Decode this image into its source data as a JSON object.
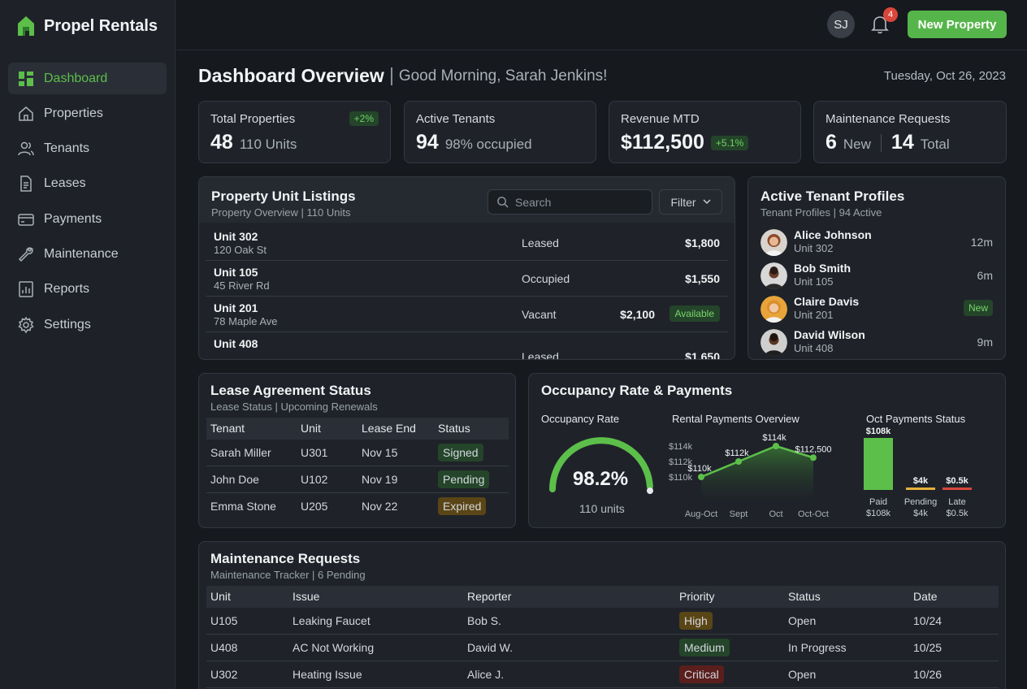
{
  "app": {
    "name": "Propel Rentals"
  },
  "sidebar": {
    "items": [
      {
        "label": "Dashboard",
        "icon": "dashboard-icon"
      },
      {
        "label": "Properties",
        "icon": "home-icon"
      },
      {
        "label": "Tenants",
        "icon": "users-icon"
      },
      {
        "label": "Leases",
        "icon": "document-icon"
      },
      {
        "label": "Payments",
        "icon": "card-icon"
      },
      {
        "label": "Maintenance",
        "icon": "wrench-icon"
      },
      {
        "label": "Reports",
        "icon": "chart-icon"
      },
      {
        "label": "Settings",
        "icon": "gear-icon"
      }
    ]
  },
  "topbar": {
    "avatar_initials": "SJ",
    "notification_count": "4",
    "new_property_label": "New Property"
  },
  "header": {
    "title": "Dashboard Overview",
    "greeting": "Good Morning, Sarah Jenkins!",
    "date": "Tuesday, Oct 26, 2023"
  },
  "stats": [
    {
      "label": "Total Properties",
      "value": "48",
      "sub": "110 Units",
      "badge": "+2%"
    },
    {
      "label": "Active Tenants",
      "value": "94",
      "sub": "98% occupied"
    },
    {
      "label": "Revenue MTD",
      "value": "$112,500",
      "badge": "+5.1%"
    },
    {
      "label": "Maintenance Requests",
      "value": "6",
      "sub": "New",
      "value2": "14",
      "sub2": "Total"
    }
  ],
  "listings": {
    "title": "Property Unit Listings",
    "subtitle": "Property Overview | 110 Units",
    "search_placeholder": "Search",
    "filter_label": "Filter",
    "rows": [
      {
        "unit": "Unit 302",
        "address": "120 Oak St",
        "status": "Leased",
        "price": "$1,800"
      },
      {
        "unit": "Unit 105",
        "address": "45 River Rd",
        "status": "Occupied",
        "price": "$1,550"
      },
      {
        "unit": "Unit 201",
        "address": "78 Maple Ave",
        "status": "Vacant",
        "price": "$2,100",
        "badge": "Available"
      },
      {
        "unit": "Unit 408",
        "address": "",
        "status": "Leased",
        "price": "$1,650"
      }
    ]
  },
  "tenants": {
    "title": "Active Tenant Profiles",
    "subtitle": "Tenant Profiles | 94 Active",
    "items": [
      {
        "name": "Alice Johnson",
        "unit": "Unit 302",
        "time": "12m"
      },
      {
        "name": "Bob Smith",
        "unit": "Unit 105",
        "time": "6m"
      },
      {
        "name": "Claire Davis",
        "unit": "Unit 201",
        "badge": "New"
      },
      {
        "name": "David Wilson",
        "unit": "Unit 408",
        "time": "9m"
      }
    ]
  },
  "leases": {
    "title": "Lease Agreement Status",
    "subtitle": "Lease Status | Upcoming Renewals",
    "columns": [
      "Tenant",
      "Unit",
      "Lease End",
      "Status"
    ],
    "rows": [
      {
        "tenant": "Sarah Miller",
        "unit": "U301",
        "end": "Nov 15",
        "status": "Signed"
      },
      {
        "tenant": "John Doe",
        "unit": "U102",
        "end": "Nov 19",
        "status": "Pending"
      },
      {
        "tenant": "Emma Stone",
        "unit": "U205",
        "end": "Nov 22",
        "status": "Expired"
      }
    ]
  },
  "occupancy": {
    "title": "Occupancy Rate & Payments",
    "gauge_title": "Occupancy Rate",
    "gauge_value": "98.2%",
    "gauge_fraction": 0.982,
    "gauge_sub": "110 units",
    "line_title": "Rental Payments Overview",
    "bar_title": "Oct Payments Status"
  },
  "chart_data": [
    {
      "type": "area",
      "title": "Rental Payments Overview",
      "x": [
        "Aug-Oct",
        "Sept",
        "Oct",
        "Oct-Oct"
      ],
      "y": [
        110000,
        112000,
        114000,
        112500
      ],
      "point_labels": [
        "$110k",
        "$112k",
        "$114k",
        "$112,500"
      ],
      "y_ticks": [
        "$114k",
        "$112k",
        "$110k"
      ],
      "color": "#5cbf4a"
    },
    {
      "type": "bar",
      "title": "Oct Payments Status",
      "categories": [
        "Paid",
        "Pending",
        "Late"
      ],
      "values": [
        108,
        4,
        0.5
      ],
      "value_labels": [
        "$108k",
        "$4k",
        "$0.5k"
      ],
      "colors": [
        "#5cbf4a",
        "#e8b03a",
        "#d9463b"
      ]
    }
  ],
  "maintenance": {
    "title": "Maintenance Requests",
    "subtitle": "Maintenance Tracker | 6 Pending",
    "columns": [
      "Unit",
      "Issue",
      "Reporter",
      "Priority",
      "Status",
      "Date"
    ],
    "rows": [
      {
        "unit": "U105",
        "issue": "Leaking Faucet",
        "reporter": "Bob S.",
        "priority": "High",
        "status": "Open",
        "date": "10/24"
      },
      {
        "unit": "U408",
        "issue": "AC Not Working",
        "reporter": "David W.",
        "priority": "Medium",
        "status": "In Progress",
        "date": "10/25"
      },
      {
        "unit": "U302",
        "issue": "Heating Issue",
        "reporter": "Alice J.",
        "priority": "Critical",
        "status": "Open",
        "date": "10/26"
      }
    ]
  }
}
